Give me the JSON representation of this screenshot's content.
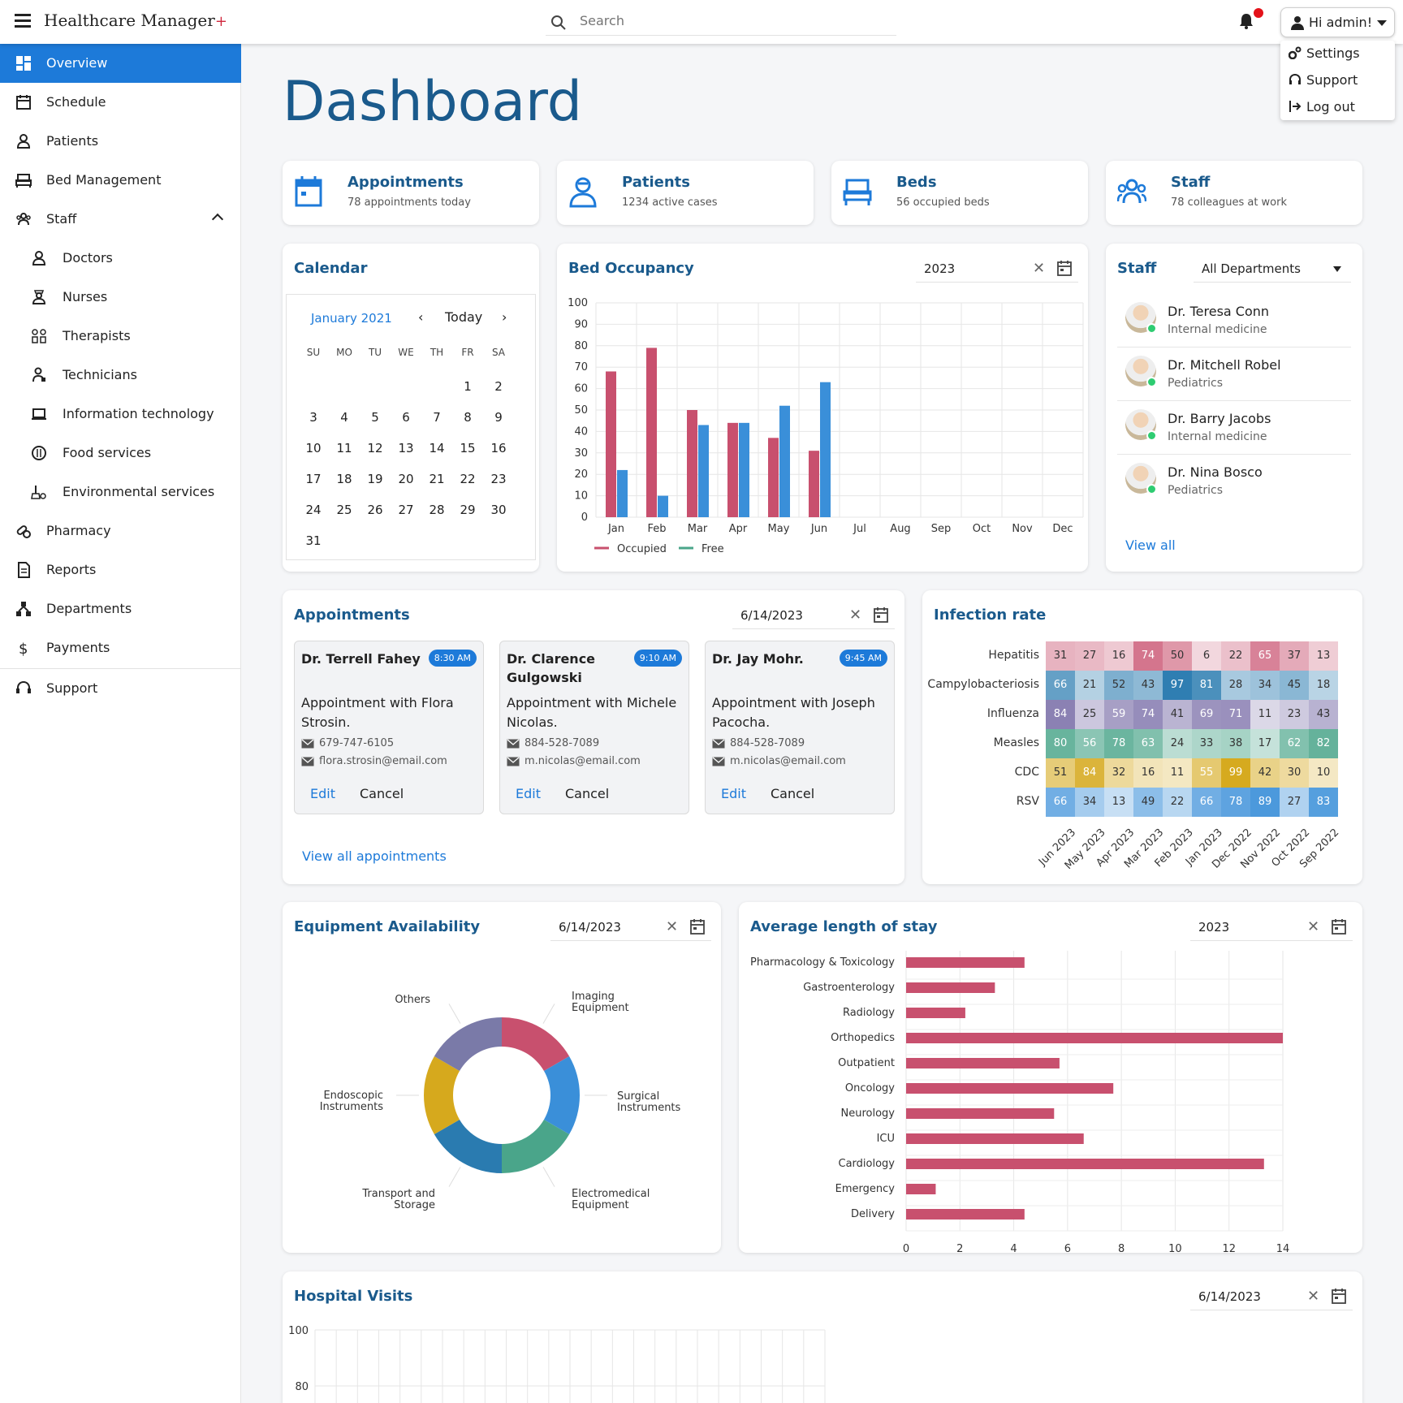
{
  "header": {
    "brand": "Healthcare Manager",
    "brand_plus": "+",
    "search_placeholder": "Search",
    "user_greeting": "Hi admin!",
    "user_menu": [
      "Settings",
      "Support",
      "Log out"
    ]
  },
  "sidebar": {
    "items": [
      {
        "label": "Overview",
        "icon": "overview-icon"
      },
      {
        "label": "Schedule",
        "icon": "schedule-icon"
      },
      {
        "label": "Patients",
        "icon": "patients-icon"
      },
      {
        "label": "Bed Management",
        "icon": "bed-icon"
      },
      {
        "label": "Staff",
        "icon": "staff-icon"
      },
      {
        "label": "Doctors",
        "icon": "doctor-icon"
      },
      {
        "label": "Nurses",
        "icon": "nurse-icon"
      },
      {
        "label": "Therapists",
        "icon": "therapist-icon"
      },
      {
        "label": "Technicians",
        "icon": "technician-icon"
      },
      {
        "label": "Information technology",
        "icon": "laptop-icon"
      },
      {
        "label": "Food services",
        "icon": "food-icon"
      },
      {
        "label": "Environmental services",
        "icon": "cleaning-icon"
      },
      {
        "label": "Pharmacy",
        "icon": "pharmacy-icon"
      },
      {
        "label": "Reports",
        "icon": "reports-icon"
      },
      {
        "label": "Departments",
        "icon": "departments-icon"
      },
      {
        "label": "Payments",
        "icon": "dollar-icon"
      },
      {
        "label": "Support",
        "icon": "support-icon"
      }
    ]
  },
  "page_title": "Dashboard",
  "summary": [
    {
      "title": "Appointments",
      "sub": "78 appointments today"
    },
    {
      "title": "Patients",
      "sub": "1234 active cases"
    },
    {
      "title": "Beds",
      "sub": "56 occupied beds"
    },
    {
      "title": "Staff",
      "sub": "78 colleagues at work"
    }
  ],
  "calendar": {
    "title": "Calendar",
    "month": "January 2021",
    "today": "Today",
    "weekdays": [
      "SU",
      "MO",
      "TU",
      "WE",
      "TH",
      "FR",
      "SA"
    ],
    "first_weekday": 5,
    "days": 31
  },
  "bed_occupancy": {
    "title": "Bed Occupancy",
    "year": "2023"
  },
  "staff_panel": {
    "title": "Staff",
    "filter": "All Departments",
    "people": [
      {
        "name": "Dr. Teresa Conn",
        "dept": "Internal medicine"
      },
      {
        "name": "Dr. Mitchell Robel",
        "dept": "Pediatrics"
      },
      {
        "name": "Dr. Barry Jacobs",
        "dept": "Internal medicine"
      },
      {
        "name": "Dr. Nina Bosco",
        "dept": "Pediatrics"
      }
    ],
    "view_all": "View all"
  },
  "appointments_panel": {
    "title": "Appointments",
    "date": "6/14/2023",
    "items": [
      {
        "doctor": "Dr. Terrell Fahey",
        "time": "8:30 AM",
        "desc": "Appointment with Flora Strosin.",
        "phone": "679-747-6105",
        "email": "flora.strosin@email.com"
      },
      {
        "doctor": "Dr. Clarence Gulgowski",
        "time": "9:10 AM",
        "desc": "Appointment with Michele Nicolas.",
        "phone": "884-528-7089",
        "email": "m.nicolas@email.com"
      },
      {
        "doctor": "Dr. Jay Mohr.",
        "time": "9:45 AM",
        "desc": "Appointment with Joseph Pacocha.",
        "phone": "884-528-7089",
        "email": "m.nicolas@email.com"
      }
    ],
    "edit": "Edit",
    "cancel": "Cancel",
    "view_all": "View all appointments"
  },
  "infection_panel": {
    "title": "Infection rate"
  },
  "equipment_panel": {
    "title": "Equipment Availability",
    "date": "6/14/2023"
  },
  "los_panel": {
    "title": "Average length of stay",
    "year": "2023"
  },
  "visits_panel": {
    "title": "Hospital Visits",
    "date": "6/14/2023"
  },
  "colors": {
    "primary": "#1d7ad9",
    "title": "#1a5a8c",
    "occupied": "#c8506e",
    "free": "#3a8fd9",
    "free_legend": "#4aa58a"
  },
  "chart_data": [
    {
      "id": "bed_occupancy",
      "type": "bar",
      "categories": [
        "Jan",
        "Feb",
        "Mar",
        "Apr",
        "May",
        "Jun",
        "Jul",
        "Aug",
        "Sep",
        "Oct",
        "Nov",
        "Dec"
      ],
      "series": [
        {
          "name": "Occupied",
          "values": [
            68,
            79,
            50,
            44,
            37,
            31,
            null,
            null,
            null,
            null,
            null,
            null
          ]
        },
        {
          "name": "Free",
          "values": [
            22,
            10,
            43,
            44,
            52,
            63,
            null,
            null,
            null,
            null,
            null,
            null
          ]
        }
      ],
      "ylim": [
        0,
        100
      ],
      "yticks": [
        0,
        10,
        20,
        30,
        40,
        50,
        60,
        70,
        80,
        90,
        100
      ],
      "grid": true,
      "legend": "bottom-left"
    },
    {
      "id": "infection_rate",
      "type": "heatmap",
      "rows": [
        "Hepatitis",
        "Campylobacteriosis",
        "Influenza",
        "Measles",
        "CDC",
        "RSV"
      ],
      "columns": [
        "Jun 2023",
        "May 2023",
        "Apr 2023",
        "Mar 2023",
        "Feb 2023",
        "Jan 2023",
        "Dec 2022",
        "Nov 2022",
        "Oct 2022",
        "Sep 2022"
      ],
      "values": [
        [
          31,
          27,
          16,
          74,
          50,
          6,
          22,
          65,
          37,
          13
        ],
        [
          66,
          21,
          52,
          43,
          97,
          81,
          28,
          34,
          45,
          18
        ],
        [
          84,
          25,
          59,
          74,
          41,
          69,
          71,
          11,
          23,
          43
        ],
        [
          80,
          56,
          78,
          63,
          24,
          33,
          38,
          17,
          62,
          82
        ],
        [
          51,
          84,
          32,
          16,
          11,
          55,
          99,
          42,
          30,
          10
        ],
        [
          66,
          34,
          13,
          49,
          22,
          66,
          78,
          89,
          27,
          83
        ]
      ],
      "row_colors": [
        "#c8506e",
        "#2a7bb0",
        "#7a6ea8",
        "#4aa58a",
        "#d6a91d",
        "#3a8fd9"
      ]
    },
    {
      "id": "equipment_availability",
      "type": "pie",
      "labels": [
        "Imaging Equipment",
        "Surgical Instruments",
        "Electromedical Equipment",
        "Transport and Storage",
        "Endoscopic Instruments",
        "Others"
      ],
      "values": [
        1,
        1,
        1,
        1,
        1,
        1
      ],
      "colors": [
        "#c8506e",
        "#3a8fd9",
        "#4aa58a",
        "#2a7bb0",
        "#d6a91d",
        "#7a7aa8"
      ]
    },
    {
      "id": "average_length_of_stay",
      "type": "bar",
      "orientation": "horizontal",
      "categories": [
        "Pharmacology & Toxicology",
        "Gastroenterology",
        "Radiology",
        "Orthopedics",
        "Outpatient",
        "Oncology",
        "Neurology",
        "ICU",
        "Cardiology",
        "Emergency",
        "Delivery"
      ],
      "values": [
        4.4,
        3.3,
        2.2,
        14,
        5.7,
        7.7,
        5.5,
        6.6,
        13.3,
        1.1,
        4.4
      ],
      "xlim": [
        0,
        14
      ],
      "xticks": [
        0,
        2,
        4,
        6,
        8,
        10,
        12,
        14
      ],
      "color": "#c8506e"
    },
    {
      "id": "hospital_visits",
      "type": "line",
      "yticks": [
        100,
        80
      ]
    }
  ]
}
